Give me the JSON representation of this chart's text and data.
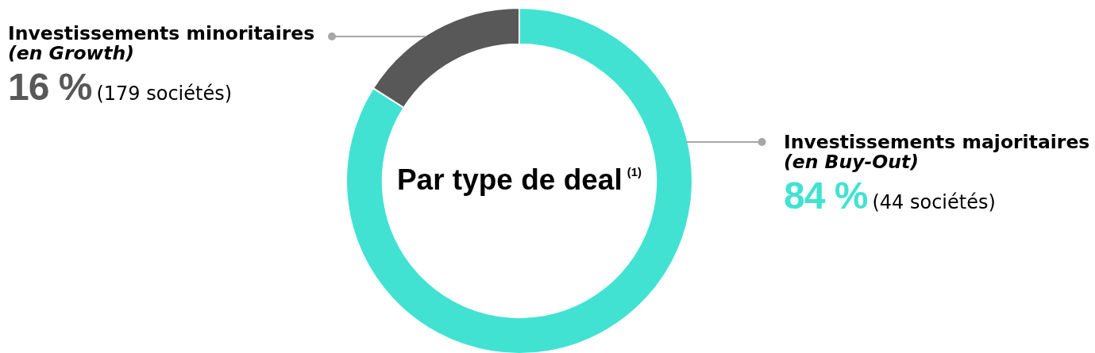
{
  "chart_data": {
    "type": "donut",
    "title": "Par type de deal$^{(1)}$",
    "categories": [
      "Investissements majoritaires\n(en Buy-Out)",
      "Investissements minoritaires\n(en Growth)"
    ],
    "values": [
      84,
      16
    ],
    "colors": [
      "#42e2d3",
      "#585858"
    ],
    "value_labels": [
      "84 %",
      "16 %"
    ],
    "annotations": [
      "(44 sociétés)",
      "(179 sociétés)"
    ]
  }
}
